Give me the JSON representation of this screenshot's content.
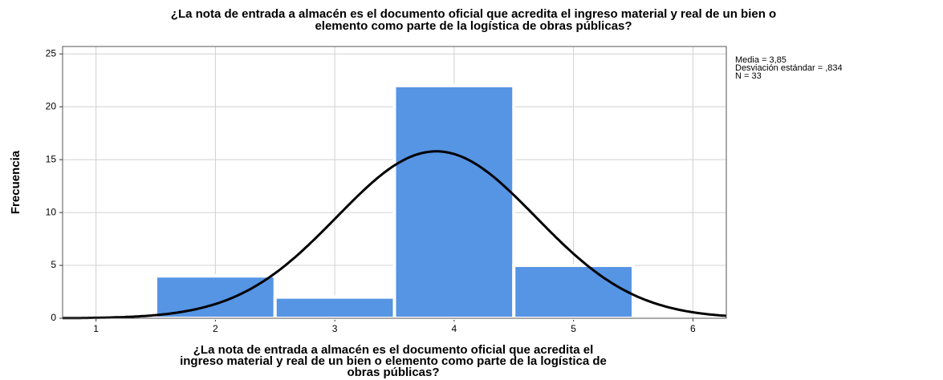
{
  "chart_data": {
    "type": "histogram",
    "title": [
      "¿La nota de entrada a almacén es el documento oficial que acredita el ingreso material y real de un bien o",
      "elemento como parte de la logística de obras públicas?"
    ],
    "x_label": [
      "¿La nota de entrada a almacén es el documento oficial que acredita el",
      "ingreso material y real de un bien o elemento como parte de la logística de",
      "obras públicas?"
    ],
    "y_label": "Frecuencia",
    "bins": [
      1.5,
      2.5,
      3.5,
      4.5,
      5.5
    ],
    "values": [
      4,
      2,
      22,
      5
    ],
    "color": "#5694e4",
    "xlim": [
      0.72,
      6.28
    ],
    "xticks": [
      1,
      2,
      3,
      4,
      5,
      6
    ],
    "ylim": [
      0,
      25.7
    ],
    "yticks": [
      0,
      5,
      10,
      15,
      20,
      25
    ],
    "grid": true,
    "stats": [
      {
        "label": "Media = 3,85",
        "value": 3.85
      },
      {
        "label": "Desviación estándar = ,834",
        "value": 0.834
      },
      {
        "label": "N = 33",
        "value": 33
      }
    ],
    "curve_color": "#000000"
  }
}
